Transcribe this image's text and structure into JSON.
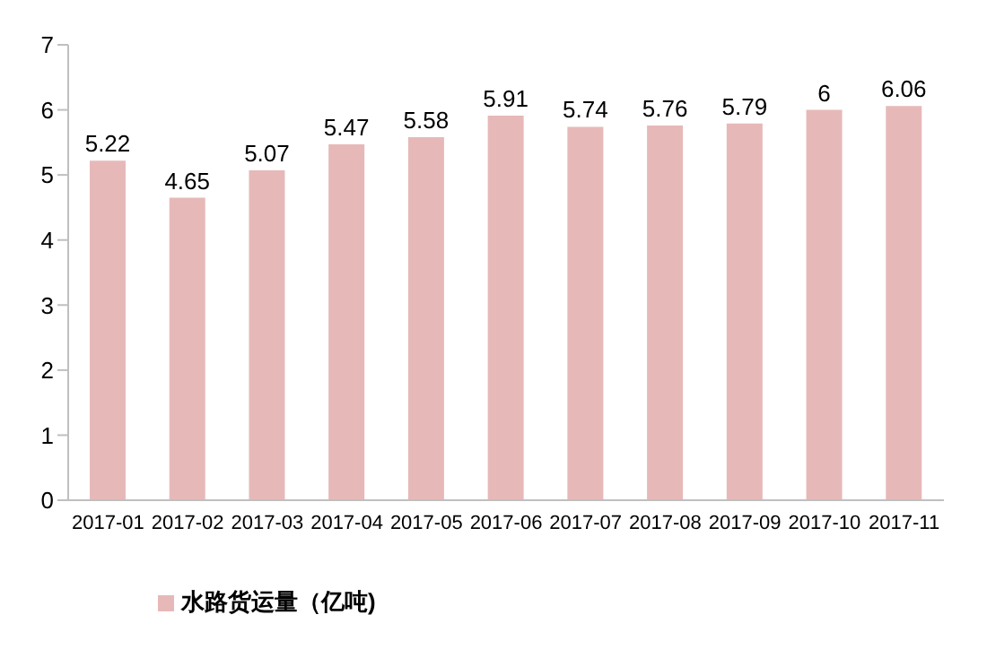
{
  "chart_data": {
    "type": "bar",
    "categories": [
      "2017-01",
      "2017-02",
      "2017-03",
      "2017-04",
      "2017-05",
      "2017-06",
      "2017-07",
      "2017-08",
      "2017-09",
      "2017-10",
      "2017-11"
    ],
    "series": [
      {
        "name": "水路货运量（亿吨)",
        "color": "#e6b9b8",
        "values": [
          5.22,
          4.65,
          5.07,
          5.47,
          5.58,
          5.91,
          5.74,
          5.76,
          5.79,
          6,
          6.06
        ]
      }
    ],
    "ylim": [
      0,
      7
    ],
    "yticks": [
      0,
      1,
      2,
      3,
      4,
      5,
      6,
      7
    ],
    "legend": "bottom left",
    "data_labels": true
  }
}
